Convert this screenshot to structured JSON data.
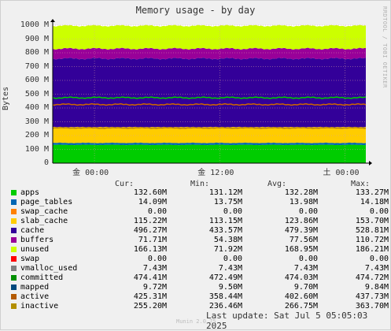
{
  "chart_data": {
    "type": "area",
    "title": "Memory usage - by day",
    "ylabel": "Bytes",
    "sidebar": "RRDTOOL / TOBI OETIKER",
    "yticks": [
      "0",
      "100 M",
      "200 M",
      "300 M",
      "400 M",
      "500 M",
      "600 M",
      "700 M",
      "800 M",
      "900 M",
      "1000 M"
    ],
    "ylim": [
      0,
      1000
    ],
    "xticks": [
      "金 00:00",
      "金 12:00",
      "土 00:00"
    ],
    "x_hours": [
      0,
      30
    ],
    "xtick_hours": [
      4,
      16,
      28
    ],
    "grid": true,
    "stacked_layers": [
      {
        "name": "apps",
        "color": "#00cc00",
        "value": 132.6
      },
      {
        "name": "page_tables",
        "color": "#0066b3",
        "value": 14.09
      },
      {
        "name": "swap_cache",
        "color": "#ff8000",
        "value": 0.0
      },
      {
        "name": "slab_cache",
        "color": "#ffcc00",
        "value": 115.22
      },
      {
        "name": "cache",
        "color": "#330099",
        "value": 496.27
      },
      {
        "name": "buffers",
        "color": "#990099",
        "value": 71.71
      },
      {
        "name": "unused",
        "color": "#ccff00",
        "value": 166.13
      },
      {
        "name": "swap",
        "color": "#ff0000",
        "value": 0.0
      }
    ],
    "lines": [
      {
        "name": "committed",
        "color": "#00cc00",
        "value": 474.41
      },
      {
        "name": "active",
        "color": "#cc6600",
        "value": 425.31
      },
      {
        "name": "inactive",
        "color": "#b8860b",
        "value": 255.2
      }
    ],
    "legend_headers": [
      "Cur:",
      "Min:",
      "Avg:",
      "Max:"
    ],
    "legend": [
      {
        "name": "apps",
        "color": "#00cc00",
        "cur": "132.60M",
        "min": "131.12M",
        "avg": "132.28M",
        "max": "133.27M"
      },
      {
        "name": "page_tables",
        "color": "#0066b3",
        "cur": "14.09M",
        "min": "13.75M",
        "avg": "13.98M",
        "max": "14.18M"
      },
      {
        "name": "swap_cache",
        "color": "#ff8000",
        "cur": "0.00",
        "min": "0.00",
        "avg": "0.00",
        "max": "0.00"
      },
      {
        "name": "slab_cache",
        "color": "#ffcc00",
        "cur": "115.22M",
        "min": "113.15M",
        "avg": "123.86M",
        "max": "153.70M"
      },
      {
        "name": "cache",
        "color": "#330099",
        "cur": "496.27M",
        "min": "433.57M",
        "avg": "479.39M",
        "max": "528.81M"
      },
      {
        "name": "buffers",
        "color": "#990099",
        "cur": "71.71M",
        "min": "54.38M",
        "avg": "77.56M",
        "max": "110.72M"
      },
      {
        "name": "unused",
        "color": "#ccff00",
        "cur": "166.13M",
        "min": "71.92M",
        "avg": "168.95M",
        "max": "186.21M"
      },
      {
        "name": "swap",
        "color": "#ff0000",
        "cur": "0.00",
        "min": "0.00",
        "avg": "0.00",
        "max": "0.00"
      },
      {
        "name": "vmalloc_used",
        "color": "#808080",
        "cur": "7.43M",
        "min": "7.43M",
        "avg": "7.43M",
        "max": "7.43M"
      },
      {
        "name": "committed",
        "color": "#008f00",
        "cur": "474.41M",
        "min": "472.49M",
        "avg": "474.03M",
        "max": "474.72M"
      },
      {
        "name": "mapped",
        "color": "#00487d",
        "cur": "9.72M",
        "min": "9.50M",
        "avg": "9.70M",
        "max": "9.84M"
      },
      {
        "name": "active",
        "color": "#b35a00",
        "cur": "425.31M",
        "min": "358.44M",
        "avg": "402.60M",
        "max": "437.73M"
      },
      {
        "name": "inactive",
        "color": "#b38f00",
        "cur": "255.20M",
        "min": "236.46M",
        "avg": "266.75M",
        "max": "363.70M"
      }
    ],
    "footer": "Last update: Sat Jul  5 05:05:03 2025",
    "version": "Munin 2.0.75"
  }
}
